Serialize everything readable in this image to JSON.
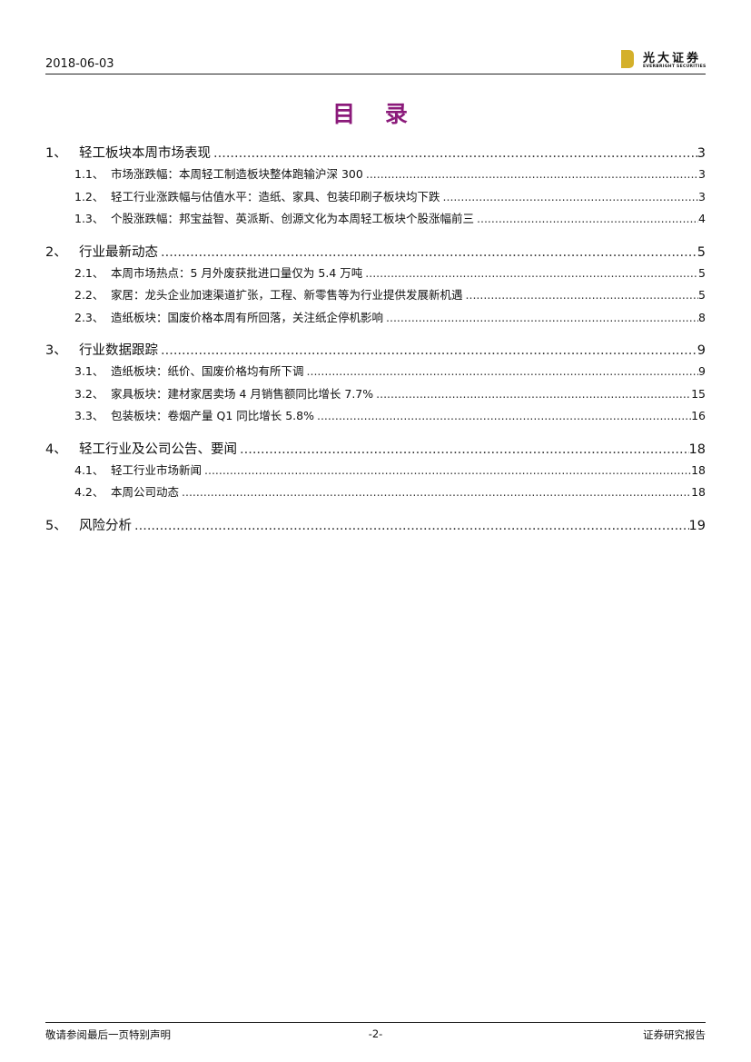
{
  "header": {
    "date": "2018-06-03",
    "logo_cn": "光大证券",
    "logo_en": "EVERBRIGHT SECURITIES"
  },
  "title": "目 录",
  "toc": [
    {
      "num": "1、",
      "text": "轻工板块本周市场表现",
      "page": "3",
      "children": [
        {
          "num": "1.1、",
          "text": "市场涨跌幅：本周轻工制造板块整体跑输沪深 300",
          "page": "3"
        },
        {
          "num": "1.2、",
          "text": "轻工行业涨跌幅与估值水平：造纸、家具、包装印刷子板块均下跌",
          "page": "3"
        },
        {
          "num": "1.3、",
          "text": "个股涨跌幅：邦宝益智、英派斯、创源文化为本周轻工板块个股涨幅前三",
          "page": "4"
        }
      ]
    },
    {
      "num": "2、",
      "text": "行业最新动态",
      "page": "5",
      "children": [
        {
          "num": "2.1、",
          "text": "本周市场热点：5 月外废获批进口量仅为 5.4 万吨",
          "page": "5"
        },
        {
          "num": "2.2、",
          "text": "家居：龙头企业加速渠道扩张，工程、新零售等为行业提供发展新机遇",
          "page": "5"
        },
        {
          "num": "2.3、",
          "text": "造纸板块：国废价格本周有所回落，关注纸企停机影响",
          "page": "8"
        }
      ]
    },
    {
      "num": "3、",
      "text": "行业数据跟踪",
      "page": "9",
      "children": [
        {
          "num": "3.1、",
          "text": "造纸板块：纸价、国废价格均有所下调",
          "page": "9"
        },
        {
          "num": "3.2、",
          "text": "家具板块：建材家居卖场 4 月销售额同比增长 7.7%",
          "page": "15"
        },
        {
          "num": "3.3、",
          "text": "包装板块：卷烟产量 Q1 同比增长 5.8%",
          "page": "16"
        }
      ]
    },
    {
      "num": "4、",
      "text": "轻工行业及公司公告、要闻",
      "page": "18",
      "children": [
        {
          "num": "4.1、",
          "text": "轻工行业市场新闻",
          "page": "18"
        },
        {
          "num": "4.2、",
          "text": "本周公司动态",
          "page": "18"
        }
      ]
    },
    {
      "num": "5、",
      "text": "风险分析",
      "page": "19",
      "children": []
    }
  ],
  "footer": {
    "left": "敬请参阅最后一页特别声明",
    "center": "-2-",
    "right": "证券研究报告"
  },
  "colors": {
    "title": "#8b1a7a",
    "logo": "#d4b02a"
  }
}
